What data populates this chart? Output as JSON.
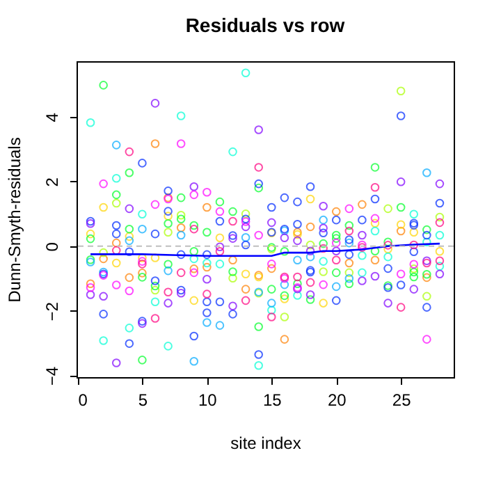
{
  "chart_data": {
    "type": "scatter",
    "title": "Residuals vs row",
    "xlabel": "site index",
    "ylabel": "Dunn-Smyth-residuals",
    "xlim": [
      -0.08,
      29.08
    ],
    "ylim": [
      -4.05,
      5.72
    ],
    "xticks": [
      0,
      5,
      10,
      15,
      20,
      25
    ],
    "yticks": [
      -4,
      -2,
      0,
      2,
      4
    ],
    "grid": false,
    "marker": "circle",
    "ref_lines": [
      {
        "axis": "y",
        "value": 0,
        "color": "#bebebe",
        "line_style": "dashed"
      }
    ],
    "series": [
      {
        "color": "#ff8000",
        "x": [
          1,
          2,
          3,
          4,
          5,
          6,
          7,
          8,
          9,
          10,
          10,
          12,
          13,
          14,
          15,
          16,
          17,
          18,
          20,
          21,
          22,
          23,
          25,
          27
        ],
        "values": [
          -1.16,
          -0.39,
          0.1,
          -0.97,
          -0.83,
          3.17,
          1.5,
          0.57,
          -0.7,
          1.2,
          -0.65,
          -0.43,
          -1.33,
          -0.9,
          -0.69,
          -2.88,
          0.43,
          0.6,
          1.07,
          -0.52,
          1.29,
          -0.43,
          0.47,
          -0.97
        ]
      },
      {
        "color": "#ffd500",
        "x": [
          1,
          2,
          3,
          4,
          5,
          6,
          7,
          9,
          11,
          13,
          14,
          15,
          16,
          17,
          18,
          19,
          23,
          24,
          25,
          26,
          28
        ],
        "values": [
          0.38,
          1.2,
          -0.52,
          0.3,
          -0.36,
          -0.36,
          0.93,
          -1.68,
          0.26,
          -0.86,
          -0.95,
          0.41,
          -1.63,
          0.36,
          1.46,
          -1.76,
          0.71,
          -0.09,
          0.67,
          0.43,
          -0.16
        ]
      },
      {
        "color": "#aaff00",
        "x": [
          2,
          3,
          6,
          7,
          8,
          12,
          13,
          14,
          15,
          16,
          18,
          19,
          21,
          24,
          25,
          26,
          27,
          28
        ],
        "values": [
          -0.2,
          1.33,
          -1.36,
          0.43,
          0.96,
          -0.99,
          1.0,
          -1.45,
          -0.09,
          -2.19,
          0.04,
          -0.79,
          -0.82,
          1.16,
          4.8,
          -0.7,
          -1.55,
          0.9
        ]
      },
      {
        "color": "#00ff2a",
        "x": [
          1,
          1,
          2,
          3,
          4,
          4,
          5,
          5,
          6,
          7,
          7,
          8,
          8,
          9,
          9,
          10,
          11,
          12,
          12,
          14,
          14,
          15,
          15,
          16,
          16,
          17,
          18,
          19,
          20,
          20,
          20,
          21,
          21,
          23,
          23,
          24,
          24,
          25,
          26,
          26,
          27,
          27
        ],
        "values": [
          0.23,
          -0.42,
          4.98,
          1.59,
          2.27,
          0.53,
          -0.96,
          -3.52,
          -1.23,
          0.7,
          -0.56,
          1.5,
          0.84,
          0.64,
          -0.16,
          0.43,
          1.37,
          1.07,
          -0.79,
          1.8,
          -2.49,
          -0.04,
          -1.33,
          -0.16,
          -1.53,
          -1.16,
          -1.65,
          0.08,
          0.34,
          0.24,
          -0.82,
          0.64,
          -1.16,
          2.44,
          -0.15,
          0.13,
          -1.22,
          1.2,
          -0.8,
          -0.95,
          0.51,
          -0.87
        ]
      },
      {
        "color": "#00ffd5",
        "x": [
          1,
          2,
          3,
          4,
          5,
          6,
          7,
          8,
          9,
          10,
          11,
          12,
          13,
          14,
          15,
          17,
          19,
          22,
          22,
          23,
          24,
          26,
          27,
          28,
          28
        ],
        "values": [
          3.82,
          -2.92,
          2.1,
          -2.53,
          0.99,
          -1.72,
          -3.09,
          4.03,
          -0.39,
          -0.52,
          -0.55,
          2.92,
          5.36,
          -3.69,
          -1.98,
          -1.52,
          -0.47,
          -0.29,
          -0.82,
          0.47,
          -0.33,
          0.99,
          0.13,
          0.34,
          -0.62
        ]
      },
      {
        "color": "#00aaff",
        "x": [
          1,
          2,
          3,
          4,
          5,
          7,
          8,
          9,
          10,
          11,
          13,
          14,
          15,
          16,
          16,
          17,
          18,
          19,
          20,
          21,
          21,
          27
        ],
        "values": [
          -0.49,
          -0.8,
          3.13,
          0.17,
          0.53,
          -0.76,
          0.34,
          -3.56,
          -2.36,
          -2.45,
          0.27,
          -1.42,
          -1.76,
          0.48,
          -1.19,
          -0.43,
          -0.33,
          0.81,
          -1.25,
          0.1,
          -1.0,
          2.27
        ]
      },
      {
        "color": "#002aff",
        "x": [
          1,
          2,
          2,
          3,
          3,
          4,
          4,
          5,
          5,
          6,
          6,
          7,
          7,
          8,
          8,
          9,
          10,
          10,
          10,
          11,
          11,
          12,
          12,
          13,
          13,
          14,
          14,
          15,
          15,
          16,
          16,
          17,
          17,
          18,
          18,
          18,
          19,
          20,
          20,
          21,
          21,
          22,
          23,
          24,
          24,
          25,
          25,
          26,
          26,
          26,
          27,
          27,
          28
        ],
        "values": [
          0.77,
          -0.86,
          -2.1,
          0.64,
          0.38,
          -0.17,
          -3.01,
          2.57,
          -2.32,
          0.38,
          -1.07,
          1.71,
          1.08,
          -0.26,
          -1.36,
          -2.78,
          -0.26,
          -1.72,
          -2.06,
          0.77,
          -1.72,
          0.33,
          -2.1,
          0.84,
          0.04,
          1.93,
          -3.35,
          1.2,
          0.43,
          1.5,
          0.53,
          1.37,
          0.68,
          1.84,
          -0.75,
          -0.8,
          0.41,
          0.81,
          -1.68,
          0.2,
          -0.26,
          0.81,
          1.46,
          -0.69,
          -1.28,
          4.03,
          -1.2,
          0.71,
          0.65,
          -0.17,
          0.34,
          -1.89,
          1.33
        ]
      },
      {
        "color": "#8000ff",
        "x": [
          1,
          1,
          2,
          3,
          4,
          5,
          6,
          7,
          8,
          9,
          10,
          11,
          12,
          12,
          13,
          14,
          15,
          16,
          17,
          17,
          18,
          18,
          19,
          19,
          20,
          22,
          22,
          23,
          24,
          25,
          26,
          27,
          28,
          28
        ],
        "values": [
          0.7,
          -1.5,
          -1.55,
          -3.61,
          1.16,
          -2.39,
          4.42,
          -1.76,
          -1.45,
          1.84,
          -1.02,
          -0.02,
          0.24,
          -1.85,
          0.6,
          3.6,
          0.73,
          0.26,
          0.17,
          -1.32,
          -0.15,
          -1.5,
          1.24,
          0.56,
          -0.15,
          0.34,
          -1.07,
          -0.93,
          -1.76,
          1.99,
          -1.33,
          -0.45,
          1.93,
          -0.86
        ]
      },
      {
        "color": "#ff00ff",
        "x": [
          1,
          2,
          2,
          3,
          4,
          5,
          6,
          7,
          8,
          9,
          9,
          10,
          11,
          13,
          14,
          15,
          16,
          17,
          19,
          20,
          21,
          22,
          23,
          25,
          26,
          27
        ],
        "values": [
          -1.28,
          1.93,
          -0.9,
          -1.2,
          -1.38,
          -0.47,
          1.29,
          1.46,
          3.17,
          1.59,
          -0.82,
          1.67,
          1.07,
          0.76,
          0.34,
          -0.55,
          -1.0,
          -1.28,
          -1.19,
          0.1,
          1.16,
          0.04,
          0.86,
          -0.86,
          -0.56,
          -2.88
        ]
      },
      {
        "color": "#ff0080",
        "x": [
          3,
          4,
          5,
          6,
          7,
          8,
          9,
          10,
          11,
          12,
          13,
          14,
          15,
          16,
          17,
          18,
          19,
          20,
          21,
          22,
          23,
          24,
          25,
          26,
          27,
          28,
          28
        ],
        "values": [
          -0.13,
          2.92,
          -0.55,
          -2.23,
          -1.42,
          -0.82,
          0.53,
          -1.48,
          -0.16,
          0.77,
          -1.68,
          2.44,
          -2.19,
          -0.95,
          -0.95,
          -1.12,
          -0.07,
          -0.43,
          0.47,
          -0.04,
          1.82,
          0.03,
          -1.89,
          0.04,
          -0.52,
          0.73,
          -0.45
        ]
      },
      {
        "type": "line",
        "color": "#0000ff",
        "line_style": "solid",
        "marker": "none",
        "x": [
          1,
          5,
          10,
          13,
          15,
          16,
          18,
          19,
          20,
          22,
          24,
          26,
          28
        ],
        "values": [
          -0.25,
          -0.25,
          -0.3,
          -0.3,
          -0.3,
          -0.2,
          -0.2,
          -0.15,
          -0.15,
          -0.1,
          0.0,
          0.05,
          0.08
        ]
      }
    ]
  }
}
